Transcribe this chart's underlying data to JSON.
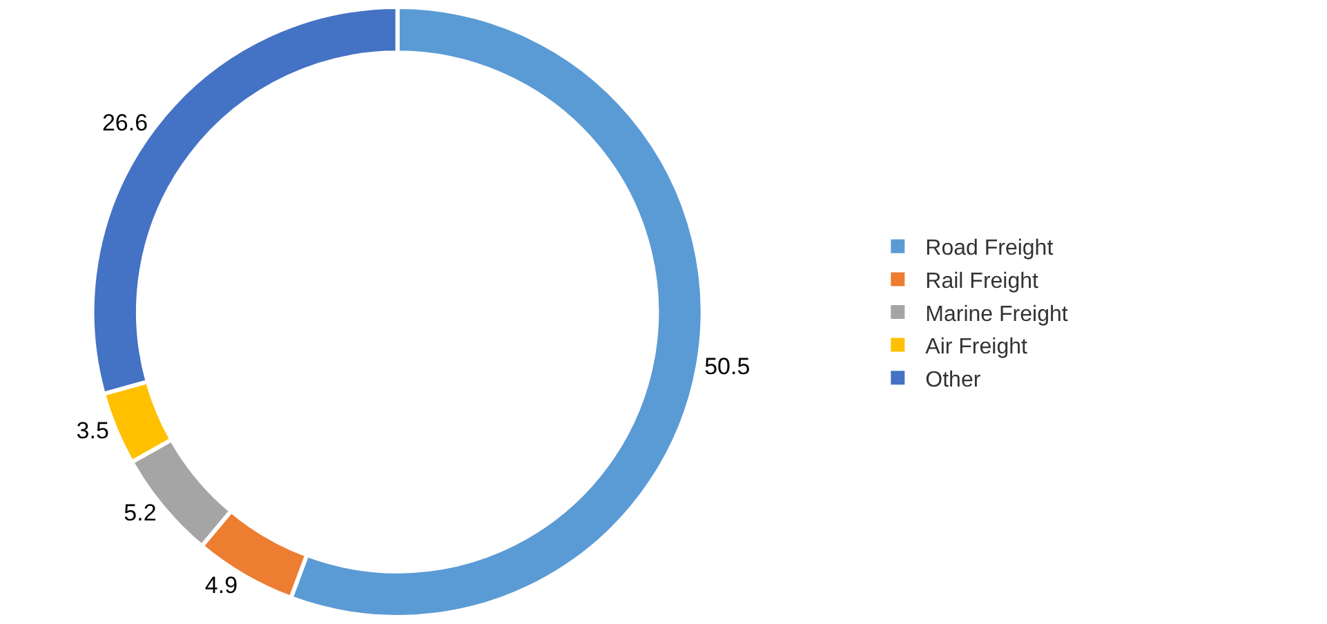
{
  "chart_data": {
    "type": "donut",
    "categories": [
      "Road Freight",
      "Rail Freight",
      "Marine Freight",
      "Air Freight",
      "Other"
    ],
    "values": [
      50.5,
      4.9,
      5.2,
      3.5,
      26.6
    ],
    "colors": [
      "#5b9bd5",
      "#ed7d31",
      "#a5a5a5",
      "#ffc000",
      "#4472c4"
    ],
    "data_labels": true,
    "legend": "right"
  }
}
